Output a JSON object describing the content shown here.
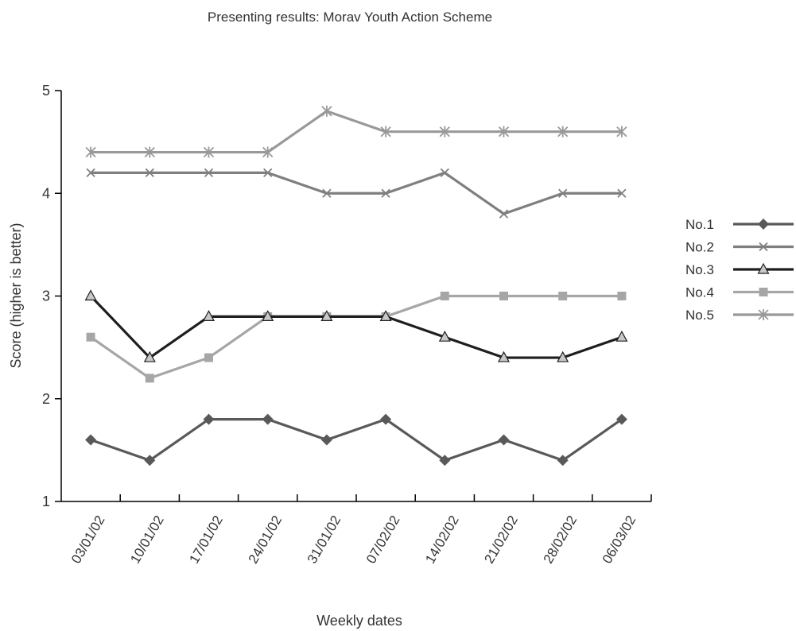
{
  "chart_data": {
    "type": "line",
    "title": "Presenting results: Morav Youth Action Scheme",
    "xlabel": "Weekly dates",
    "ylabel": "Score (higher is better)",
    "ylim": [
      1,
      5
    ],
    "yticks": [
      "1",
      "2",
      "3",
      "4",
      "5"
    ],
    "categories": [
      "03/01/02",
      "10/01/02",
      "17/01/02",
      "24/01/02",
      "31/01/02",
      "07/02/02",
      "14/02/02",
      "21/02/02",
      "28/02/02",
      "06/03/02"
    ],
    "grid": false,
    "legend_position": "right",
    "series": [
      {
        "name": "No.1",
        "color": "#595959",
        "marker": "diamond",
        "values": [
          1.6,
          1.4,
          1.8,
          1.8,
          1.6,
          1.8,
          1.4,
          1.6,
          1.4,
          1.8
        ]
      },
      {
        "name": "No.2",
        "color": "#7f7f7f",
        "marker": "x",
        "values": [
          4.2,
          4.2,
          4.2,
          4.2,
          4.0,
          4.0,
          4.2,
          3.8,
          4.0,
          4.0
        ]
      },
      {
        "name": "No.3",
        "color": "#1e1e1e",
        "marker": "triangle",
        "values": [
          3.0,
          2.4,
          2.8,
          2.8,
          2.8,
          2.8,
          2.6,
          2.4,
          2.4,
          2.6
        ]
      },
      {
        "name": "No.4",
        "color": "#a6a6a6",
        "marker": "square",
        "values": [
          2.6,
          2.2,
          2.4,
          2.8,
          2.8,
          2.8,
          3.0,
          3.0,
          3.0,
          3.0
        ]
      },
      {
        "name": "No.5",
        "color": "#999999",
        "marker": "asterisk",
        "values": [
          4.4,
          4.4,
          4.4,
          4.4,
          4.8,
          4.6,
          4.6,
          4.6,
          4.6,
          4.6
        ]
      }
    ]
  }
}
